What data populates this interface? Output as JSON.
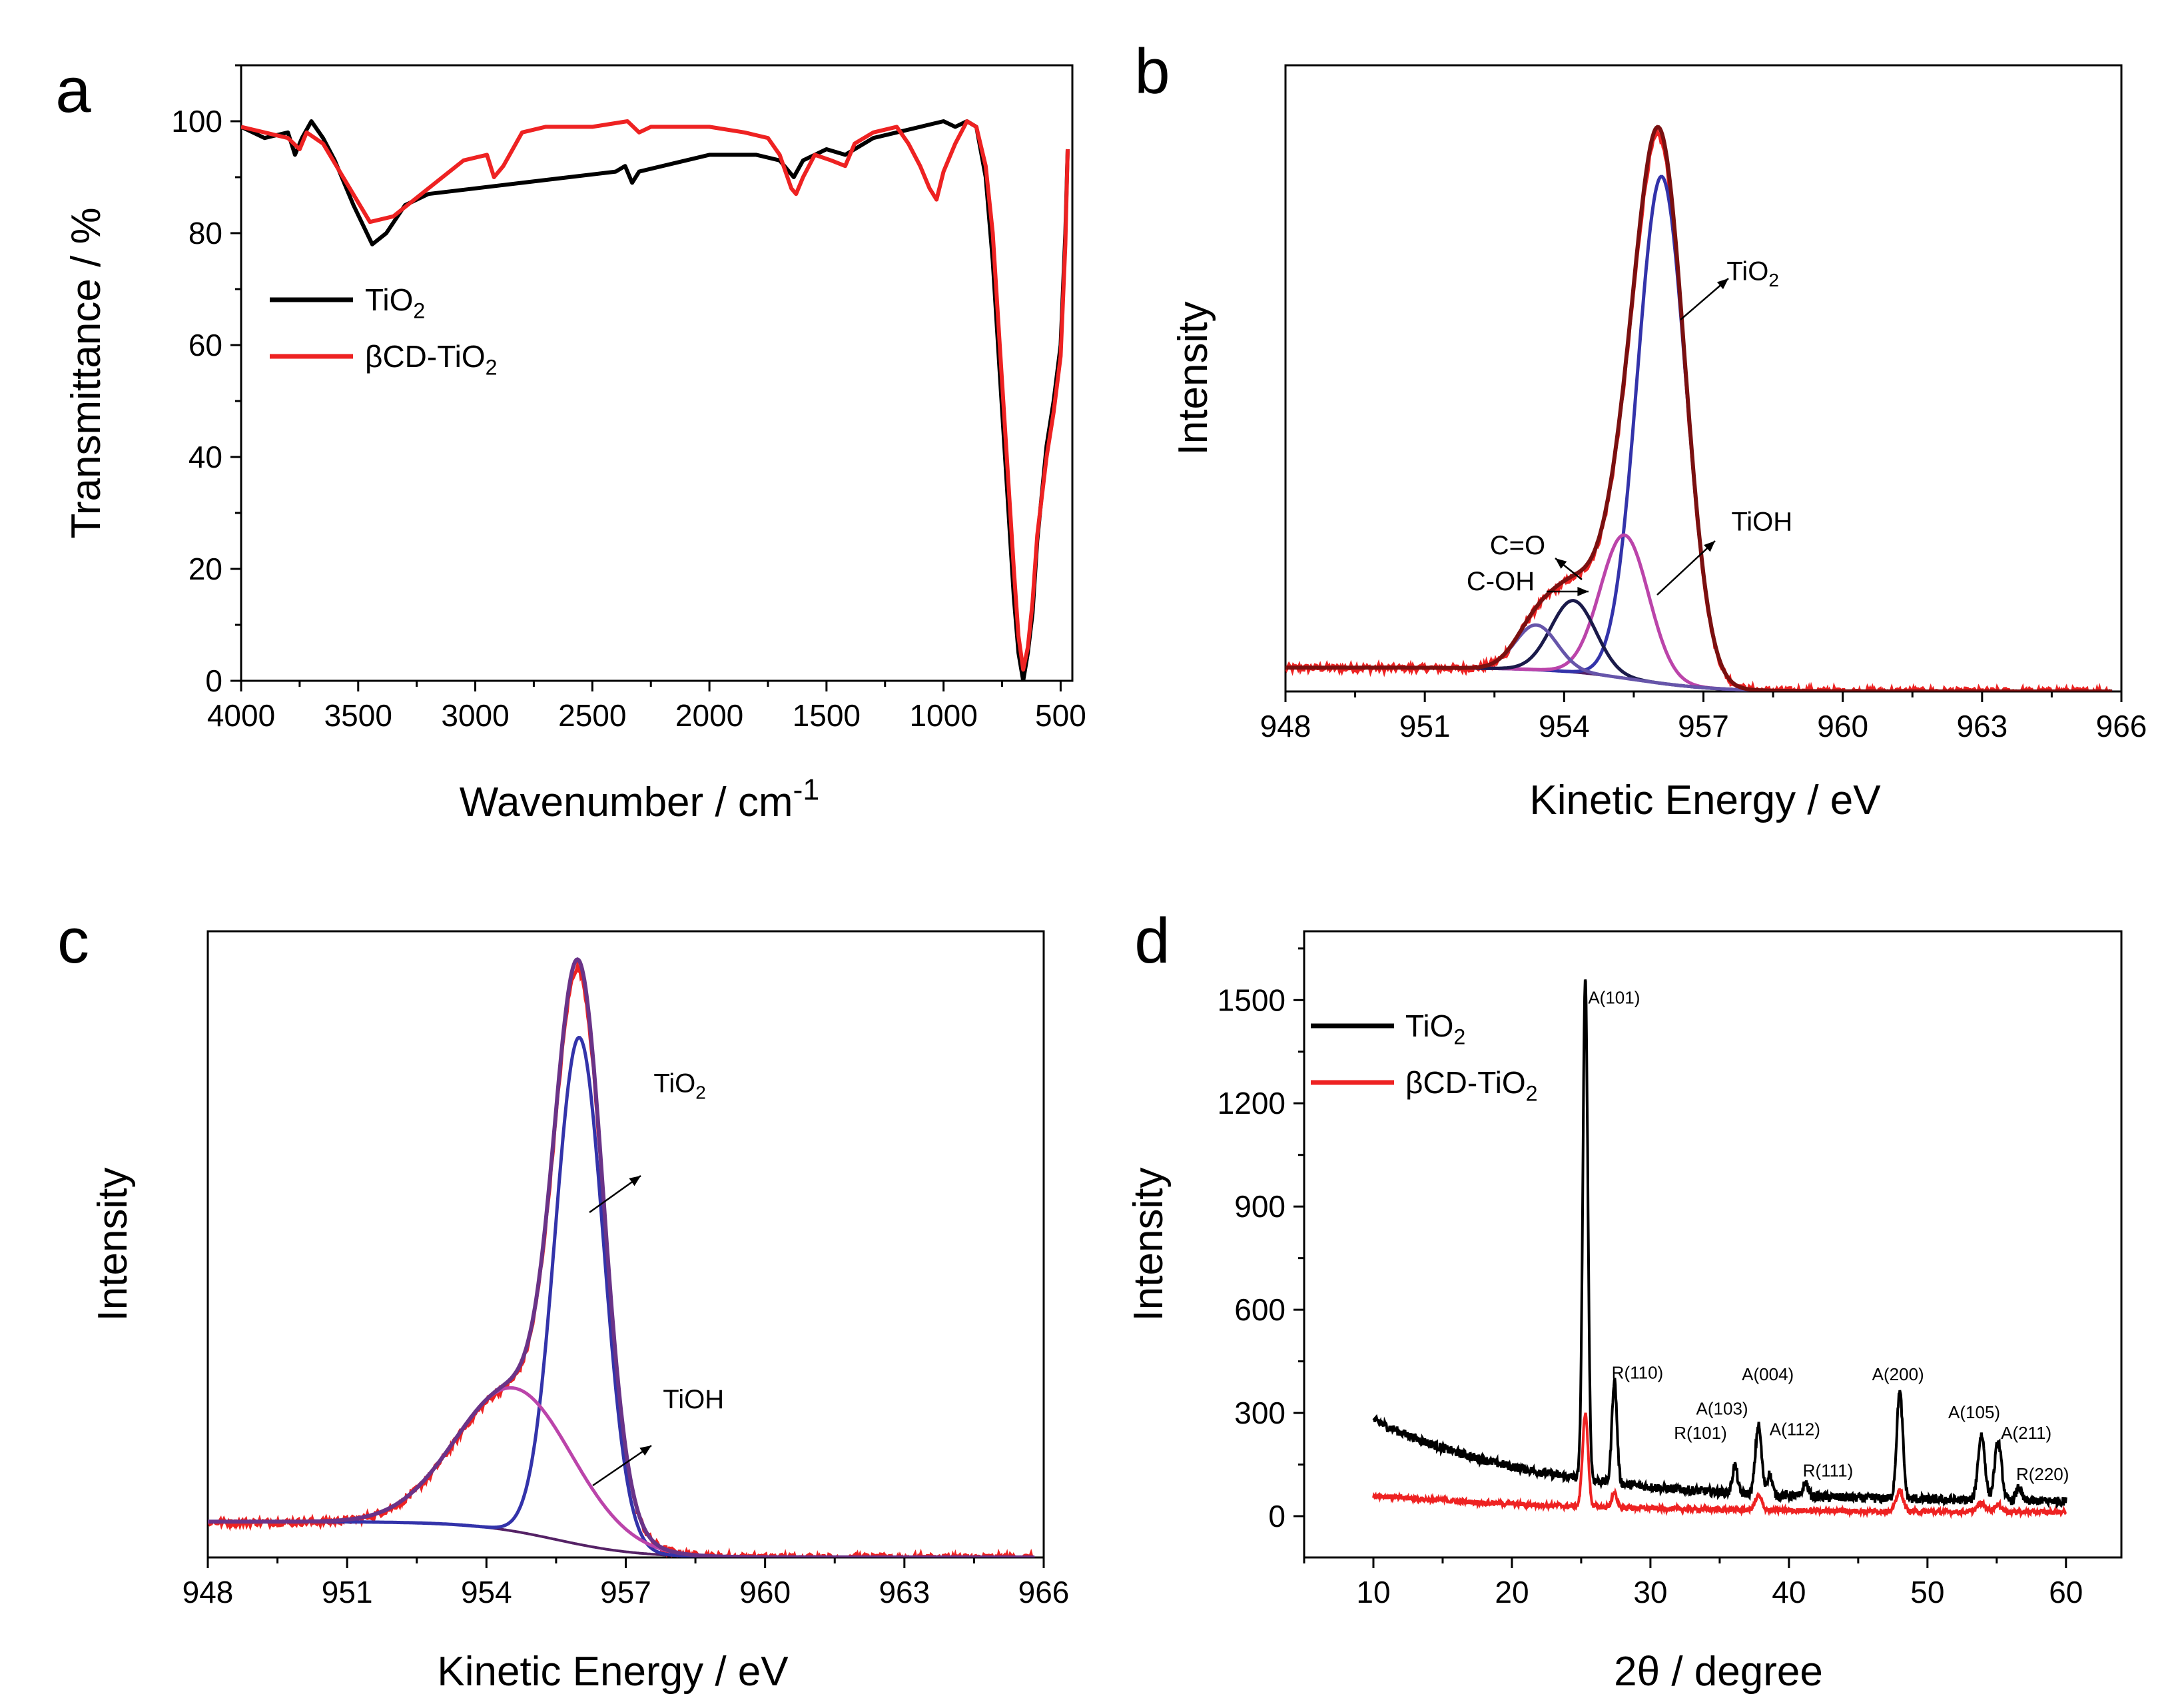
{
  "chart_data": [
    {
      "id": "a",
      "type": "line",
      "panel_label": "a",
      "xlabel": "Wavenumber / cm",
      "xlabel_sup": "-1",
      "ylabel": "Transmittance / %",
      "xlim": [
        4000,
        450
      ],
      "ylim": [
        0,
        110
      ],
      "xticks": [
        4000,
        3500,
        3000,
        2500,
        2000,
        1500,
        1000,
        500
      ],
      "yticks": [
        0,
        20,
        40,
        60,
        80,
        100
      ],
      "legend": [
        {
          "label": "TiO",
          "sub": "2",
          "color": "#000000"
        },
        {
          "label": "βCD-TiO",
          "sub": "2",
          "color": "#ee2222"
        }
      ],
      "series": [
        {
          "name": "TiO2",
          "color": "#000000",
          "x": [
            4000,
            3900,
            3800,
            3770,
            3740,
            3700,
            3650,
            3600,
            3520,
            3440,
            3380,
            3300,
            3200,
            3000,
            2800,
            2600,
            2400,
            2360,
            2330,
            2300,
            2200,
            2000,
            1800,
            1700,
            1640,
            1600,
            1500,
            1420,
            1300,
            1200,
            1100,
            1000,
            950,
            900,
            860,
            820,
            790,
            760,
            730,
            700,
            680,
            660,
            640,
            620,
            600,
            560,
            530,
            500,
            480,
            470
          ],
          "y": [
            99,
            97,
            98,
            94,
            97,
            100,
            97,
            93,
            85,
            78,
            80,
            85,
            87,
            88,
            89,
            90,
            91,
            92,
            89,
            91,
            92,
            94,
            94,
            93,
            90,
            93,
            95,
            94,
            97,
            98,
            99,
            100,
            99,
            100,
            99,
            90,
            75,
            55,
            35,
            15,
            5,
            0,
            5,
            12,
            25,
            42,
            50,
            60,
            80,
            95
          ]
        },
        {
          "name": "βCD-TiO2",
          "color": "#ee2222",
          "x": [
            4000,
            3900,
            3800,
            3750,
            3720,
            3650,
            3550,
            3450,
            3350,
            3200,
            3050,
            2950,
            2920,
            2880,
            2800,
            2700,
            2500,
            2350,
            2300,
            2250,
            2000,
            1850,
            1750,
            1700,
            1650,
            1630,
            1600,
            1550,
            1480,
            1420,
            1380,
            1300,
            1200,
            1150,
            1100,
            1060,
            1030,
            1000,
            950,
            900,
            860,
            820,
            790,
            760,
            730,
            700,
            680,
            660,
            640,
            620,
            600,
            560,
            530,
            500,
            480,
            470
          ],
          "y": [
            99,
            98,
            97,
            95,
            98,
            96,
            89,
            82,
            83,
            88,
            93,
            94,
            90,
            92,
            98,
            99,
            99,
            100,
            98,
            99,
            99,
            98,
            97,
            94,
            88,
            87,
            90,
            94,
            93,
            92,
            96,
            98,
            99,
            96,
            92,
            88,
            86,
            91,
            96,
            100,
            99,
            92,
            80,
            60,
            40,
            20,
            8,
            2,
            6,
            14,
            26,
            40,
            48,
            58,
            78,
            95
          ]
        }
      ]
    },
    {
      "id": "b",
      "type": "line",
      "panel_label": "b",
      "xlabel": "Kinetic Energy / eV",
      "ylabel": "Intensity",
      "xlim": [
        948,
        966
      ],
      "ylim": [
        0,
        105
      ],
      "xticks": [
        948,
        951,
        954,
        957,
        960,
        963,
        966
      ],
      "baseline": {
        "start": 4,
        "end": 0
      },
      "peaks": [
        {
          "name": "TiO2",
          "center": 956.1,
          "amp": 85,
          "sigma": 0.52,
          "color": "#3333aa"
        },
        {
          "name": "TiOH",
          "center": 955.3,
          "amp": 24,
          "sigma": 0.52,
          "color": "#bb44aa"
        },
        {
          "name": "C=O",
          "center": 954.2,
          "amp": 12,
          "sigma": 0.48,
          "color": "#1a1a4a"
        },
        {
          "name": "C-OH",
          "center": 953.4,
          "amp": 7.5,
          "sigma": 0.45,
          "color": "#6655aa"
        }
      ],
      "envelope_color": "#7a1010",
      "data_color": "#ee2222",
      "annotations": [
        {
          "text": "TiO",
          "sub": "2",
          "x": 957.5,
          "y": 69
        },
        {
          "text": "TiOH",
          "x": 957.6,
          "y": 27
        },
        {
          "text": "C=O",
          "x": 952.4,
          "y": 23
        },
        {
          "text": "C-OH",
          "x": 951.9,
          "y": 17
        }
      ]
    },
    {
      "id": "c",
      "type": "line",
      "panel_label": "c",
      "xlabel": "Kinetic Energy / eV",
      "ylabel": "Intensity",
      "xlim": [
        948,
        966
      ],
      "ylim": [
        0,
        105
      ],
      "xticks": [
        948,
        951,
        954,
        957,
        960,
        963,
        966
      ],
      "baseline": {
        "start": 6,
        "end": 0
      },
      "peaks": [
        {
          "name": "TiO2",
          "center": 956.0,
          "amp": 85,
          "sigma": 0.52,
          "color": "#3333aa"
        },
        {
          "name": "TiOH",
          "center": 954.6,
          "amp": 24,
          "sigma": 1.25,
          "color": "#bb44aa"
        }
      ],
      "envelope_color": "#6a3388",
      "data_color": "#ee2222",
      "annotations": [
        {
          "text": "TiO",
          "sub": "2",
          "x": 957.6,
          "y": 78
        },
        {
          "text": "TiOH",
          "x": 957.8,
          "y": 25
        }
      ]
    },
    {
      "id": "d",
      "type": "line",
      "panel_label": "d",
      "xlabel": "2θ / degree",
      "ylabel": "Intensity",
      "xlim": [
        5,
        64
      ],
      "ylim": [
        -120,
        1700
      ],
      "xticks": [
        10,
        20,
        30,
        40,
        50,
        60
      ],
      "yticks": [
        0,
        300,
        600,
        900,
        1200,
        1500
      ],
      "legend": [
        {
          "label": "TiO",
          "sub": "2",
          "color": "#000000"
        },
        {
          "label": "βCD-TiO",
          "sub": "2",
          "color": "#ee2222"
        }
      ],
      "series": [
        {
          "name": "TiO2",
          "color": "#000000",
          "bg_start": 280,
          "bg_end": 40,
          "decay": 12,
          "peaks": [
            [
              25.3,
              1450,
              0.18
            ],
            [
              27.4,
              300,
              0.18
            ],
            [
              36.1,
              80,
              0.18
            ],
            [
              37.8,
              200,
              0.22
            ],
            [
              38.6,
              60,
              0.18
            ],
            [
              41.2,
              40,
              0.18
            ],
            [
              48.0,
              310,
              0.22
            ],
            [
              53.9,
              190,
              0.25
            ],
            [
              55.1,
              170,
              0.25
            ],
            [
              56.6,
              40,
              0.18
            ]
          ]
        },
        {
          "name": "βCD-TiO2",
          "color": "#ee2222",
          "bg_start": 60,
          "bg_end": 10,
          "decay": 15,
          "peaks": [
            [
              25.3,
              270,
              0.2
            ],
            [
              27.4,
              40,
              0.2
            ],
            [
              37.8,
              40,
              0.25
            ],
            [
              48.0,
              60,
              0.25
            ],
            [
              53.9,
              25,
              0.3
            ],
            [
              55.1,
              20,
              0.3
            ]
          ]
        }
      ],
      "peak_labels": [
        {
          "text": "A(101)",
          "x": 25.5,
          "y": 1490
        },
        {
          "text": "R(110)",
          "x": 27.2,
          "y": 400
        },
        {
          "text": "A(004)",
          "x": 36.6,
          "y": 395
        },
        {
          "text": "A(103)",
          "x": 33.3,
          "y": 295
        },
        {
          "text": "R(101)",
          "x": 31.7,
          "y": 225
        },
        {
          "text": "A(112)",
          "x": 38.6,
          "y": 235
        },
        {
          "text": "R(111)",
          "x": 41.0,
          "y": 115
        },
        {
          "text": "A(200)",
          "x": 46.0,
          "y": 395
        },
        {
          "text": "A(105)",
          "x": 51.5,
          "y": 285
        },
        {
          "text": "A(211)",
          "x": 55.3,
          "y": 225
        },
        {
          "text": "R(220)",
          "x": 56.4,
          "y": 105
        }
      ]
    }
  ]
}
